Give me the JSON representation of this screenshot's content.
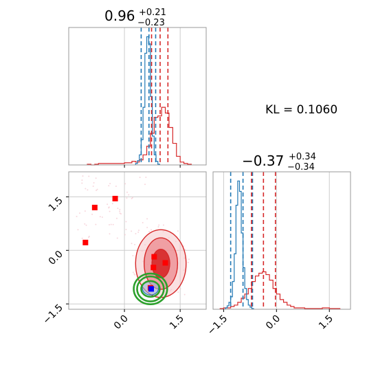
{
  "chart_data": {
    "type": "corner",
    "annotation": "KL = 0.1060",
    "colors": {
      "red": "#d62728",
      "blue": "#1f77b4",
      "green": "#2ca02c",
      "marker": "#ff0000",
      "marker_blue": "#0000ff",
      "grid": "#cccccc",
      "frame": "#999999"
    },
    "diag_x": {
      "title_value": "0.96",
      "title_plus": "+0.21",
      "title_minus": "−0.23",
      "xlim": [
        -1.5,
        2.2
      ],
      "red_quantiles": [
        0.73,
        0.96,
        1.17
      ],
      "blue_quantiles": [
        0.45,
        0.66,
        0.84
      ],
      "red_hist": {
        "edges": [
          -1.0,
          -0.9,
          -0.8,
          -0.7,
          -0.6,
          -0.5,
          -0.4,
          -0.3,
          -0.2,
          -0.1,
          0.0,
          0.1,
          0.2,
          0.3,
          0.4,
          0.5,
          0.6,
          0.7,
          0.8,
          0.9,
          1.0,
          1.1,
          1.2,
          1.3,
          1.4,
          1.5,
          1.6,
          1.7,
          1.8
        ],
        "counts": [
          1,
          0,
          1,
          2,
          2,
          2,
          2,
          2,
          2,
          2,
          3,
          3,
          5,
          4,
          7,
          14,
          26,
          44,
          66,
          68,
          80,
          72,
          52,
          30,
          12,
          4,
          2,
          1
        ]
      },
      "blue_hist": {
        "edges": [
          0.3,
          0.35,
          0.4,
          0.45,
          0.5,
          0.55,
          0.6,
          0.65,
          0.7,
          0.75,
          0.8,
          0.85,
          0.9,
          0.95
        ],
        "counts": [
          2,
          6,
          14,
          35,
          80,
          155,
          178,
          168,
          95,
          40,
          14,
          5,
          1
        ]
      }
    },
    "diag_y": {
      "title_value": "−0.37",
      "title_plus": "+0.34",
      "title_minus": "−0.34",
      "xlim": [
        -1.8,
        2.1
      ],
      "red_quantiles": [
        -0.71,
        -0.37,
        -0.03
      ],
      "blue_quantiles": [
        -1.3,
        -0.95,
        -0.68
      ],
      "red_hist": {
        "edges": [
          -1.6,
          -1.5,
          -1.4,
          -1.3,
          -1.2,
          -1.1,
          -1.0,
          -0.9,
          -0.8,
          -0.7,
          -0.6,
          -0.5,
          -0.4,
          -0.3,
          -0.2,
          -0.1,
          0.0,
          0.1,
          0.2,
          0.3,
          0.4,
          0.5,
          0.6,
          0.7,
          0.8,
          0.9,
          1.0,
          1.1,
          1.2,
          1.3,
          1.4,
          1.5,
          1.6,
          1.7,
          1.8
        ],
        "counts": [
          1,
          2,
          2,
          4,
          6,
          10,
          16,
          22,
          30,
          40,
          48,
          52,
          54,
          50,
          42,
          30,
          22,
          14,
          10,
          6,
          4,
          2,
          2,
          2,
          1,
          1,
          1,
          1,
          1,
          2,
          2,
          1,
          1,
          1
        ]
      },
      "blue_hist": {
        "edges": [
          -1.45,
          -1.4,
          -1.35,
          -1.3,
          -1.25,
          -1.2,
          -1.15,
          -1.1,
          -1.05,
          -1.0,
          -0.95,
          -0.9,
          -0.85,
          -0.8,
          -0.75,
          -0.7,
          -0.65
        ],
        "counts": [
          2,
          5,
          10,
          18,
          40,
          80,
          150,
          185,
          170,
          110,
          60,
          30,
          14,
          6,
          3,
          1
        ]
      }
    },
    "joint": {
      "xlim": [
        -1.5,
        2.2
      ],
      "ylim": [
        -1.65,
        2.2
      ],
      "xticks": [
        0.0,
        1.5
      ],
      "yticks": [
        -1.5,
        0.0,
        1.5
      ],
      "xtick_labels": [
        "0.0",
        "1.5"
      ],
      "ytick_labels": [
        "−1.5",
        "0.0",
        "1.5"
      ],
      "red_center": [
        0.98,
        -0.37
      ],
      "red_contour_radii": [
        [
          0.24,
          0.4
        ],
        [
          0.45,
          0.72
        ],
        [
          0.68,
          0.95
        ]
      ],
      "blue_center": [
        0.7,
        -1.05
      ],
      "blue_radii": [
        0.22,
        0.2
      ],
      "green_center": [
        0.7,
        -1.08
      ],
      "green_radii": [
        [
          0.25,
          0.22
        ],
        [
          0.36,
          0.35
        ],
        [
          0.45,
          0.43
        ]
      ],
      "red_markers": [
        [
          -0.8,
          1.2
        ],
        [
          -0.25,
          1.45
        ],
        [
          -1.05,
          0.22
        ],
        [
          0.8,
          -0.18
        ],
        [
          1.1,
          -0.35
        ],
        [
          0.78,
          -0.48
        ],
        [
          0.7,
          -1.05
        ]
      ],
      "blue_marker": [
        0.72,
        -1.08
      ]
    },
    "bottom_xticks": {
      "left": [
        0.0,
        1.5
      ],
      "left_labels": [
        "0.0",
        "1.5"
      ],
      "right": [
        -1.5,
        0.0,
        1.5
      ],
      "right_labels": [
        "−1.5",
        "0.0",
        "1.5"
      ]
    }
  }
}
